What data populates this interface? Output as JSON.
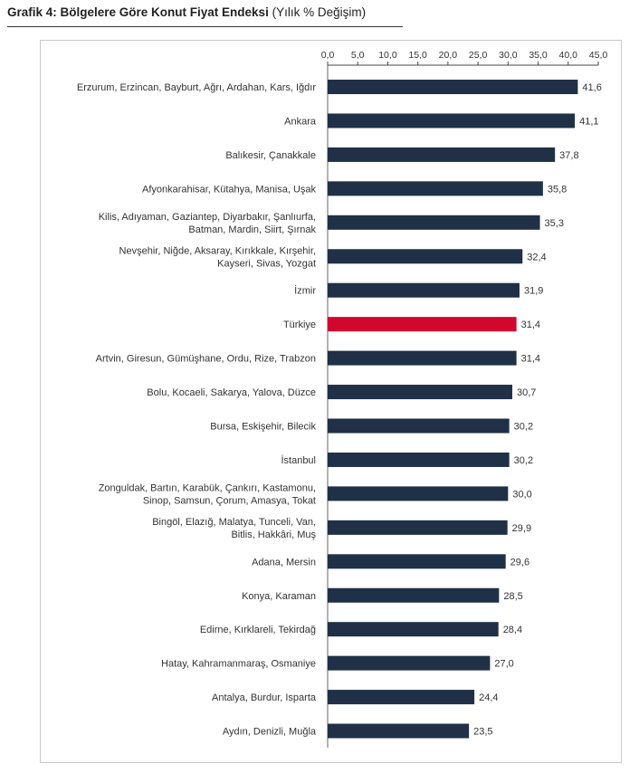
{
  "title": {
    "bold": "Grafik 4: Bölgelere Göre Konut Fiyat Endeksi",
    "normal": "(Yılık % Değişim)"
  },
  "colors": {
    "bar": "#1f3047",
    "highlight": "#d1072f",
    "axis": "#444444"
  },
  "chart_data": {
    "type": "bar",
    "orientation": "horizontal",
    "title": "Grafik 4: Bölgelere Göre Konut Fiyat Endeksi (Yılık % Değişim)",
    "xlim": [
      0,
      45
    ],
    "xticks": [
      "0,0",
      "5,0",
      "10,0",
      "15,0",
      "20,0",
      "25,0",
      "30,0",
      "35,0",
      "40,0",
      "45,0"
    ],
    "highlight_category": "Türkiye",
    "categories": [
      [
        "Erzurum, Erzincan, Bayburt, Ağrı, Ardahan, Kars, Iğdır"
      ],
      [
        "Ankara"
      ],
      [
        "Balıkesir, Çanakkale"
      ],
      [
        "Afyonkarahisar, Kütahya, Manisa, Uşak"
      ],
      [
        "Kilis, Adıyaman, Gaziantep, Diyarbakır, Şanlıurfa,",
        "Batman, Mardin, Siirt, Şırnak"
      ],
      [
        "Nevşehir, Niğde, Aksaray, Kırıkkale, Kırşehir,",
        "Kayseri, Sivas, Yozgat"
      ],
      [
        "İzmir"
      ],
      [
        "Türkiye"
      ],
      [
        "Artvin, Giresun, Gümüşhane, Ordu, Rize, Trabzon"
      ],
      [
        "Bolu, Kocaeli, Sakarya, Yalova, Düzce"
      ],
      [
        "Bursa, Eskişehir, Bilecik"
      ],
      [
        "İstanbul"
      ],
      [
        "Zonguldak, Bartın, Karabük, Çankırı, Kastamonu,",
        "Sinop, Samsun, Çorum, Amasya, Tokat"
      ],
      [
        "Bingöl, Elazığ, Malatya, Tunceli, Van,",
        "Bitlis, Hakkâri, Muş"
      ],
      [
        "Adana, Mersin"
      ],
      [
        "Konya, Karaman"
      ],
      [
        "Edirne, Kırklareli, Tekirdağ"
      ],
      [
        "Hatay, Kahramanmaraş, Osmaniye"
      ],
      [
        "Antalya, Burdur, Isparta"
      ],
      [
        "Aydın, Denizli, Muğla"
      ]
    ],
    "values": [
      41.6,
      41.1,
      37.8,
      35.8,
      35.3,
      32.4,
      31.9,
      31.4,
      31.4,
      30.7,
      30.2,
      30.2,
      30.0,
      29.9,
      29.6,
      28.5,
      28.4,
      27.0,
      24.4,
      23.5
    ],
    "value_labels": [
      "41,6",
      "41,1",
      "37,8",
      "35,8",
      "35,3",
      "32,4",
      "31,9",
      "31,4",
      "31,4",
      "30,7",
      "30,2",
      "30,2",
      "30,0",
      "29,9",
      "29,6",
      "28,5",
      "28,4",
      "27,0",
      "24,4",
      "23,5"
    ]
  }
}
